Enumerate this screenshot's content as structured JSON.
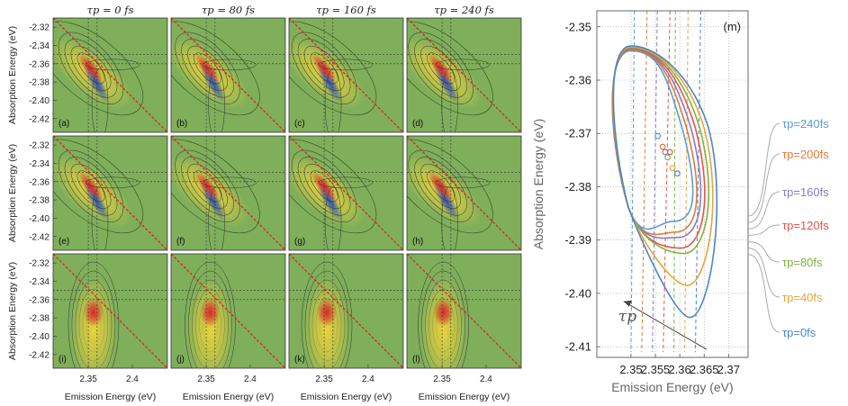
{
  "chart_data": [
    {
      "type": "heatmap",
      "grid": {
        "rows": 3,
        "cols": 4
      },
      "column_titles": [
        "τp = 0 fs",
        "τp = 80 fs",
        "τp = 160 fs",
        "τp = 240 fs"
      ],
      "panel_labels": [
        "(a)",
        "(b)",
        "(c)",
        "(d)",
        "(e)",
        "(f)",
        "(g)",
        "(h)",
        "(i)",
        "(j)",
        "(k)",
        "(l)"
      ],
      "ylabel": "Absorption Energy (eV)",
      "xlabel": "Emission Energy (eV)",
      "yticks": [
        "-2.32",
        "-2.34",
        "-2.36",
        "-2.38",
        "-2.40",
        "-2.42"
      ],
      "ytick_values": [
        -2.32,
        -2.34,
        -2.36,
        -2.38,
        -2.4,
        -2.42
      ],
      "xticks": [
        "2.35",
        "2.4"
      ],
      "xtick_values": [
        2.35,
        2.4
      ],
      "xlim": [
        2.31,
        2.44
      ],
      "ylim": [
        -2.435,
        -2.31
      ],
      "colors": {
        "background": "#7faf5a",
        "positive": "#d9262a",
        "negative": "#2a4fb8",
        "diagonal": "#e02020"
      }
    },
    {
      "type": "line",
      "panel_label": "(m)",
      "xlabel": "Emission Energy (eV)",
      "ylabel": "Absorption Energy (eV)",
      "xlim": [
        2.343,
        2.374
      ],
      "ylim": [
        -2.412,
        -2.347
      ],
      "xticks": [
        "2.35",
        "2.355",
        "2.36",
        "2.365",
        "2.37"
      ],
      "xtick_values": [
        2.35,
        2.355,
        2.36,
        2.365,
        2.37
      ],
      "yticks": [
        "-2.35",
        "-2.36",
        "-2.37",
        "-2.38",
        "-2.39",
        "-2.40",
        "-2.41"
      ],
      "ytick_values": [
        -2.35,
        -2.36,
        -2.37,
        -2.38,
        -2.39,
        -2.4,
        -2.41
      ],
      "grid": true,
      "arrow_label": "τp",
      "series": [
        {
          "name": "τp=240fs",
          "color": "#5b9bd5",
          "center": [
            2.3555,
            -2.3705
          ],
          "bottom": -2.3865
        },
        {
          "name": "τp=200fs",
          "color": "#e07b39",
          "center": [
            2.3565,
            -2.3725
          ],
          "bottom": -2.3885
        },
        {
          "name": "τp=160fs",
          "color": "#8c79c2",
          "center": [
            2.357,
            -2.3735
          ],
          "bottom": -2.3895
        },
        {
          "name": "τp=120fs",
          "color": "#e8534a",
          "center": [
            2.358,
            -2.3735
          ],
          "bottom": -2.3915
        },
        {
          "name": "τp=80fs",
          "color": "#7fb43c",
          "center": [
            2.3575,
            -2.3745
          ],
          "bottom": -2.3925
        },
        {
          "name": "τp=40fs",
          "color": "#e8a53c",
          "center": [
            2.3585,
            -2.3765
          ],
          "bottom": -2.3985
        },
        {
          "name": "τp=0fs",
          "color": "#4a86c8",
          "center": [
            2.3595,
            -2.3775
          ],
          "bottom": -2.4045
        }
      ]
    }
  ]
}
